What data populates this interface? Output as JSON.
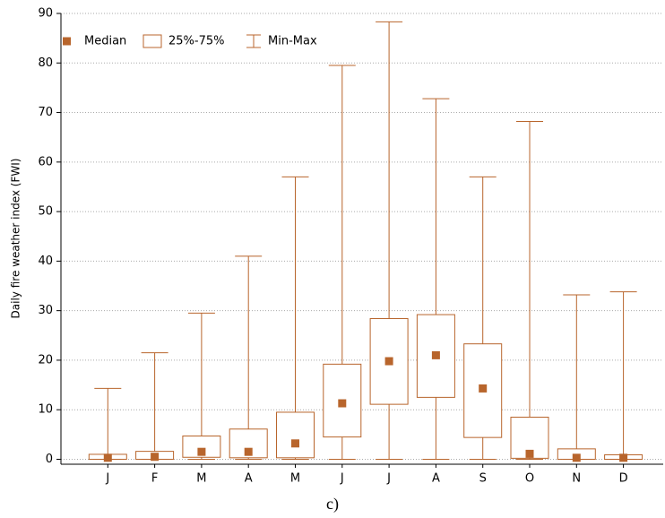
{
  "chart_data": {
    "type": "box",
    "ylabel": "Daily fire weather index (FWI)",
    "caption": "c)",
    "categories": [
      "J",
      "F",
      "M",
      "A",
      "M",
      "J",
      "J",
      "A",
      "S",
      "O",
      "N",
      "D"
    ],
    "min": [
      0,
      0,
      0,
      0,
      0,
      0,
      0,
      0,
      0,
      0,
      0,
      0
    ],
    "q1": [
      0,
      0,
      0.4,
      0.3,
      0.3,
      4.5,
      11.1,
      12.5,
      4.4,
      0.2,
      0,
      0
    ],
    "median": [
      0.3,
      0.5,
      1.5,
      1.5,
      3.2,
      11.3,
      19.8,
      21,
      14.3,
      1.1,
      0.3,
      0.3
    ],
    "q3": [
      1,
      1.6,
      4.7,
      6.1,
      9.5,
      19.2,
      28.4,
      29.2,
      23.3,
      8.5,
      2.1,
      0.9
    ],
    "max": [
      14.3,
      21.5,
      29.5,
      41,
      57,
      79.5,
      88.3,
      72.8,
      57,
      68.2,
      33.2,
      33.8
    ],
    "legend_labels": [
      "Median",
      "25%-75%",
      "Min-Max"
    ],
    "color": "#b8652c",
    "ylim": [
      -1,
      90
    ],
    "yticks": [
      0,
      10,
      20,
      30,
      40,
      50,
      60,
      70,
      80,
      90
    ],
    "grid": true
  }
}
